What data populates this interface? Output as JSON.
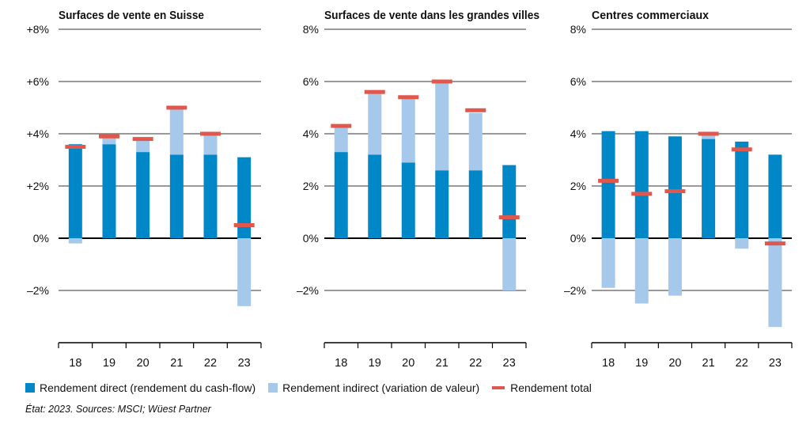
{
  "colors": {
    "direct": "#0087c8",
    "indirect": "#a6c8ea",
    "total": "#e2574c"
  },
  "legend": {
    "direct": "Rendement direct (rendement du cash-flow)",
    "indirect": "Rendement indirect (variation de valeur)",
    "total": "Rendement total"
  },
  "footnote": "État: 2023. Sources: MSCI; Wüest Partner",
  "chart_data": [
    {
      "type": "bar",
      "stacked": true,
      "title": "Surfaces de vente en Suisse",
      "categories": [
        "18",
        "19",
        "20",
        "21",
        "22",
        "23"
      ],
      "ylim": [
        -4,
        8
      ],
      "yticks": [
        -2,
        0,
        2,
        4,
        6,
        8
      ],
      "ytick_labels": [
        "–2%",
        "0%",
        "+2%",
        "+4%",
        "+6%",
        "+8%"
      ],
      "grid": true,
      "series": [
        {
          "name": "Rendement direct (rendement du cash-flow)",
          "kind": "bar",
          "values": [
            3.6,
            3.6,
            3.3,
            3.2,
            3.2,
            3.1
          ]
        },
        {
          "name": "Rendement indirect (variation de valeur)",
          "kind": "bar",
          "values": [
            -0.2,
            0.3,
            0.5,
            1.8,
            0.8,
            -2.6
          ]
        },
        {
          "name": "Rendement total",
          "kind": "marker",
          "values": [
            3.5,
            3.9,
            3.8,
            5.0,
            4.0,
            0.5
          ]
        }
      ]
    },
    {
      "type": "bar",
      "stacked": true,
      "title": "Surfaces de vente dans les grandes villes",
      "categories": [
        "18",
        "19",
        "20",
        "21",
        "22",
        "23"
      ],
      "ylim": [
        -4,
        8
      ],
      "yticks": [
        -2,
        0,
        2,
        4,
        6,
        8
      ],
      "ytick_labels": [
        "–2%",
        "0%",
        "2%",
        "4%",
        "6%",
        "8%"
      ],
      "grid": true,
      "series": [
        {
          "name": "Rendement direct (rendement du cash-flow)",
          "kind": "bar",
          "values": [
            3.3,
            3.2,
            2.9,
            2.6,
            2.6,
            2.8
          ]
        },
        {
          "name": "Rendement indirect (variation de valeur)",
          "kind": "bar",
          "values": [
            1.0,
            2.4,
            2.5,
            3.4,
            2.2,
            -2.0
          ]
        },
        {
          "name": "Rendement total",
          "kind": "marker",
          "values": [
            4.3,
            5.6,
            5.4,
            6.0,
            4.9,
            0.8
          ]
        }
      ]
    },
    {
      "type": "bar",
      "stacked": true,
      "title": "Centres commerciaux",
      "categories": [
        "18",
        "19",
        "20",
        "21",
        "22",
        "23"
      ],
      "ylim": [
        -4,
        8
      ],
      "yticks": [
        -2,
        0,
        2,
        4,
        6,
        8
      ],
      "ytick_labels": [
        "–2%",
        "0%",
        "2%",
        "4%",
        "6%",
        "8%"
      ],
      "grid": true,
      "series": [
        {
          "name": "Rendement direct (rendement du cash-flow)",
          "kind": "bar",
          "values": [
            4.1,
            4.1,
            3.9,
            3.8,
            3.7,
            3.2
          ]
        },
        {
          "name": "Rendement indirect (variation de valeur)",
          "kind": "bar",
          "values": [
            -1.9,
            -2.5,
            -2.2,
            0.2,
            -0.4,
            -3.4
          ]
        },
        {
          "name": "Rendement total",
          "kind": "marker",
          "values": [
            2.2,
            1.7,
            1.8,
            4.0,
            3.4,
            -0.2
          ]
        }
      ]
    }
  ]
}
